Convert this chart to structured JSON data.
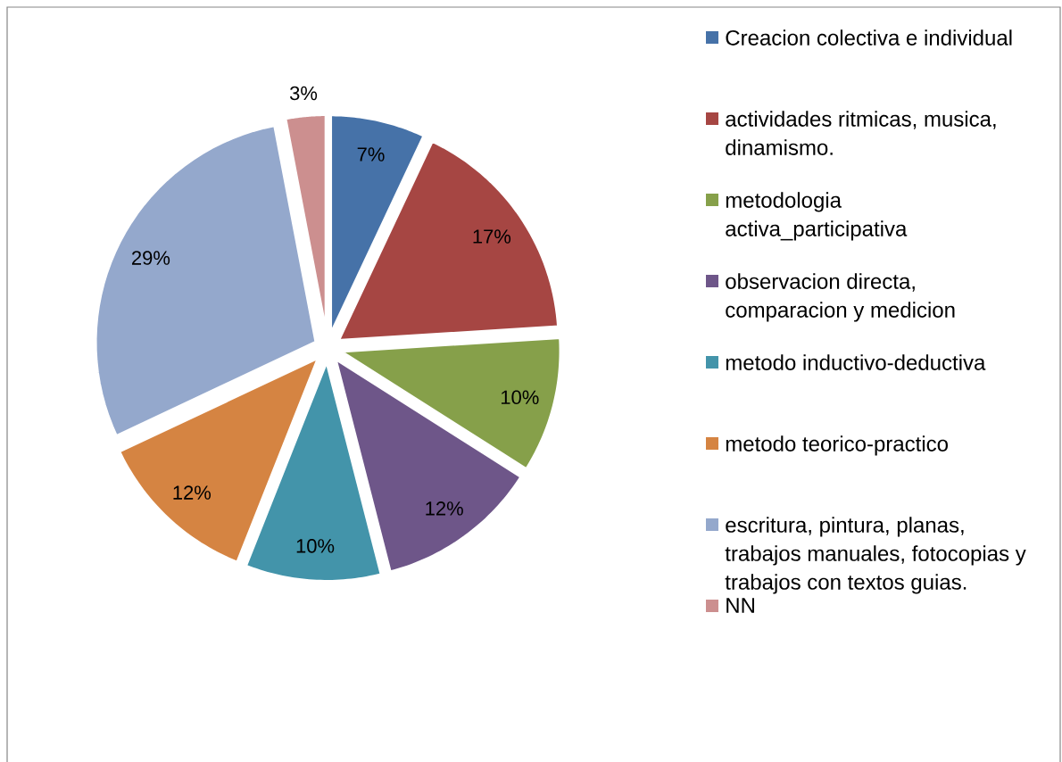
{
  "chart_data": {
    "type": "pie",
    "categories": [
      "Creacion colectiva e individual",
      "actividades ritmicas, musica, dinamismo.",
      "metodologia activa_participativa",
      "observacion directa, comparacion y medicion",
      "metodo inductivo-deductiva",
      "metodo teorico-practico",
      "escritura, pintura, planas, trabajos manuales, fotocopias y trabajos con textos guias.",
      "NN"
    ],
    "values": [
      7,
      17,
      10,
      12,
      10,
      12,
      29,
      3
    ],
    "value_labels": [
      "7%",
      "17%",
      "10%",
      "12%",
      "10%",
      "12%",
      "29%",
      "3%"
    ],
    "colors": [
      "#4672a8",
      "#a64643",
      "#86a04a",
      "#6e5689",
      "#4394aa",
      "#d58442",
      "#94a8cc",
      "#cc8f8f"
    ],
    "legend": "right"
  }
}
